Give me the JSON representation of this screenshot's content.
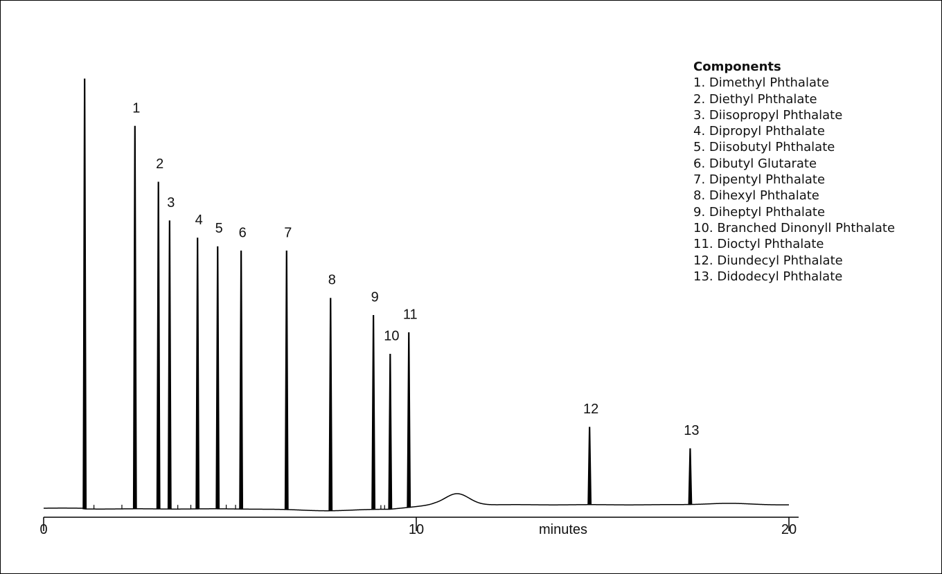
{
  "chart_data": {
    "type": "line",
    "xlabel": "minutes",
    "xlim": [
      0,
      20
    ],
    "x_ticks": [
      0,
      10,
      20
    ],
    "peaks": [
      {
        "label": "1",
        "x": 2.45,
        "height": 0.89
      },
      {
        "label": "2",
        "x": 3.08,
        "height": 0.76
      },
      {
        "label": "3",
        "x": 3.38,
        "height": 0.67
      },
      {
        "label": "4",
        "x": 4.13,
        "height": 0.63
      },
      {
        "label": "5",
        "x": 4.67,
        "height": 0.61
      },
      {
        "label": "6",
        "x": 5.3,
        "height": 0.6
      },
      {
        "label": "7",
        "x": 6.52,
        "height": 0.6
      },
      {
        "label": "8",
        "x": 7.7,
        "height": 0.49
      },
      {
        "label": "9",
        "x": 8.85,
        "height": 0.45
      },
      {
        "label": "10",
        "x": 9.3,
        "height": 0.36
      },
      {
        "label": "11",
        "x": 9.8,
        "height": 0.41
      },
      {
        "label": "12",
        "x": 14.65,
        "height": 0.19
      },
      {
        "label": "13",
        "x": 17.35,
        "height": 0.14
      }
    ],
    "unlabeled_peaks": [
      {
        "x": 1.1,
        "height": 1.0
      }
    ],
    "legend": {
      "title": "Components",
      "items": [
        "1. Dimethyl Phthalate",
        "2. Diethyl Phthalate",
        "3. Diisopropyl Phthalate",
        "4. Dipropyl Phthalate",
        "5. Diisobutyl Phthalate",
        "6. Dibutyl Glutarate",
        "7. Dipentyl Phthalate",
        "8. Dihexyl Phthalate",
        "9. Diheptyl Phthalate",
        "10. Branched Dinonyll Phthalate",
        "11. Dioctyl Phthalate",
        "12. Diundecyl Phthalate",
        "13. Didodecyl Phthalate"
      ]
    },
    "colors": {
      "trace": "#000000",
      "background": "#ffffff"
    }
  }
}
